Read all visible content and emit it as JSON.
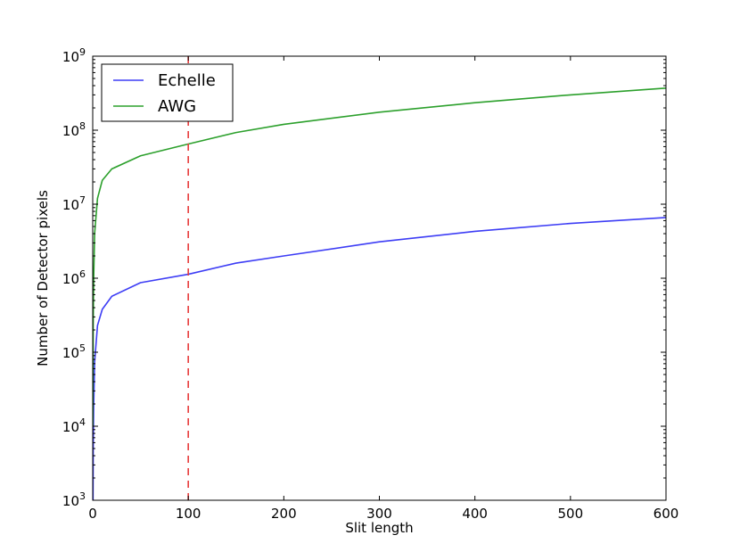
{
  "chart_data": {
    "type": "line",
    "title": "",
    "xlabel": "Slit length",
    "ylabel": "Number of Detector pixels",
    "xlim": [
      0,
      600
    ],
    "ylim": [
      1000,
      1000000000
    ],
    "y_scale": "log",
    "grid": false,
    "legend_position": "top-left",
    "x_ticks": [
      {
        "value": 0,
        "label": "0"
      },
      {
        "value": 100,
        "label": "100"
      },
      {
        "value": 200,
        "label": "200"
      },
      {
        "value": 300,
        "label": "300"
      },
      {
        "value": 400,
        "label": "400"
      },
      {
        "value": 500,
        "label": "500"
      },
      {
        "value": 600,
        "label": "600"
      }
    ],
    "y_ticks": [
      {
        "value": 1000,
        "base": "10",
        "exp": "3"
      },
      {
        "value": 10000,
        "base": "10",
        "exp": "4"
      },
      {
        "value": 100000,
        "base": "10",
        "exp": "5"
      },
      {
        "value": 1000000,
        "base": "10",
        "exp": "6"
      },
      {
        "value": 10000000,
        "base": "10",
        "exp": "7"
      },
      {
        "value": 100000000,
        "base": "10",
        "exp": "8"
      },
      {
        "value": 1000000000,
        "base": "10",
        "exp": "9"
      }
    ],
    "series": [
      {
        "name": "Echelle",
        "color": "#3d3df5",
        "x": [
          0.1,
          0.5,
          1,
          2,
          5,
          10,
          20,
          50,
          100,
          150,
          200,
          300,
          400,
          500,
          600
        ],
        "values": [
          184.0,
          4600.0,
          18400.0,
          74000.0,
          230000.0,
          380000.0,
          570000.0,
          870000.0,
          1130000.0,
          1600000.0,
          2000000.0,
          3100000.0,
          4300000.0,
          5500000.0,
          6600000.0
        ]
      },
      {
        "name": "AWG",
        "color": "#2ca02c",
        "x": [
          0.1,
          0.5,
          1,
          2,
          5,
          10,
          20,
          50,
          100,
          150,
          200,
          300,
          400,
          500,
          600
        ],
        "values": [
          10000.0,
          250000.0,
          1000000.0,
          4000000.0,
          12000000.0,
          21000000.0,
          30000000.0,
          45000000.0,
          65000000.0,
          93000000.0,
          120000000.0,
          175000000.0,
          235000000.0,
          300000000.0,
          370000000.0
        ]
      }
    ],
    "reference_lines": [
      {
        "orientation": "vertical",
        "x": 100,
        "color": "#e83a3a",
        "style": "dashed"
      }
    ]
  }
}
